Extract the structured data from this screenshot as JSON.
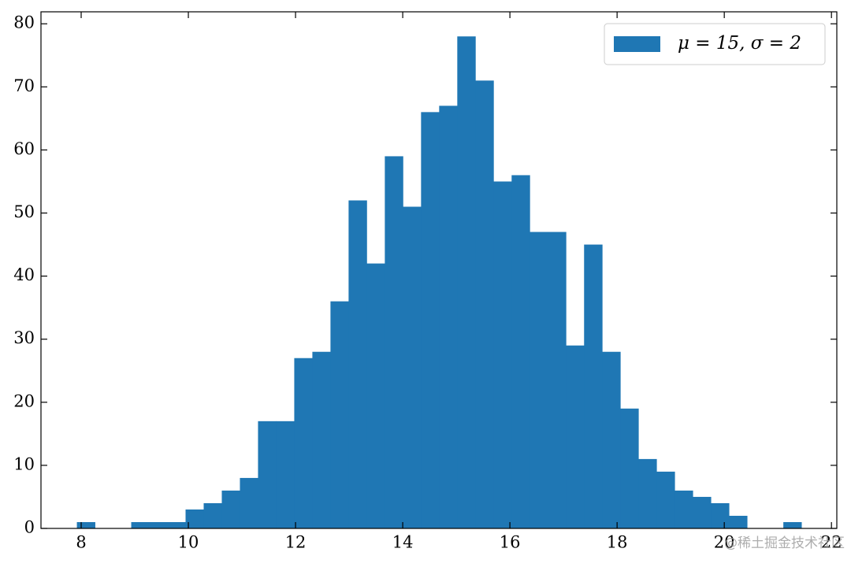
{
  "chart_data": {
    "type": "histogram",
    "bins": [
      7.92,
      8.258,
      8.596,
      8.934,
      9.272,
      9.61,
      9.948,
      10.286,
      10.624,
      10.962,
      11.3,
      11.638,
      11.976,
      12.314,
      12.652,
      12.99,
      13.328,
      13.666,
      14.004,
      14.342,
      14.68,
      15.018,
      15.356,
      15.694,
      16.032,
      16.37,
      16.708,
      17.046,
      17.384,
      17.722,
      18.06,
      18.398,
      18.736,
      19.074,
      19.412,
      19.75,
      20.088,
      20.426,
      20.764,
      21.102,
      21.44
    ],
    "series": [
      {
        "name": "μ = 15, σ = 2",
        "color": "#1f77b4",
        "values": [
          1,
          0,
          0,
          1,
          1,
          1,
          3,
          4,
          6,
          8,
          17,
          17,
          27,
          28,
          36,
          52,
          42,
          59,
          51,
          66,
          67,
          78,
          71,
          55,
          56,
          47,
          47,
          29,
          45,
          28,
          19,
          11,
          9,
          6,
          5,
          4,
          2,
          0,
          0,
          1
        ]
      }
    ],
    "xlim": [
      7.25,
      22.1
    ],
    "xticks": [
      8,
      10,
      12,
      14,
      16,
      18,
      20,
      22
    ],
    "ylim": [
      0,
      81.9
    ],
    "yticks": [
      0,
      10,
      20,
      30,
      40,
      50,
      60,
      70,
      80
    ],
    "legend": "upper right",
    "grid": false,
    "watermark": "@稀土掘金技术社区"
  }
}
